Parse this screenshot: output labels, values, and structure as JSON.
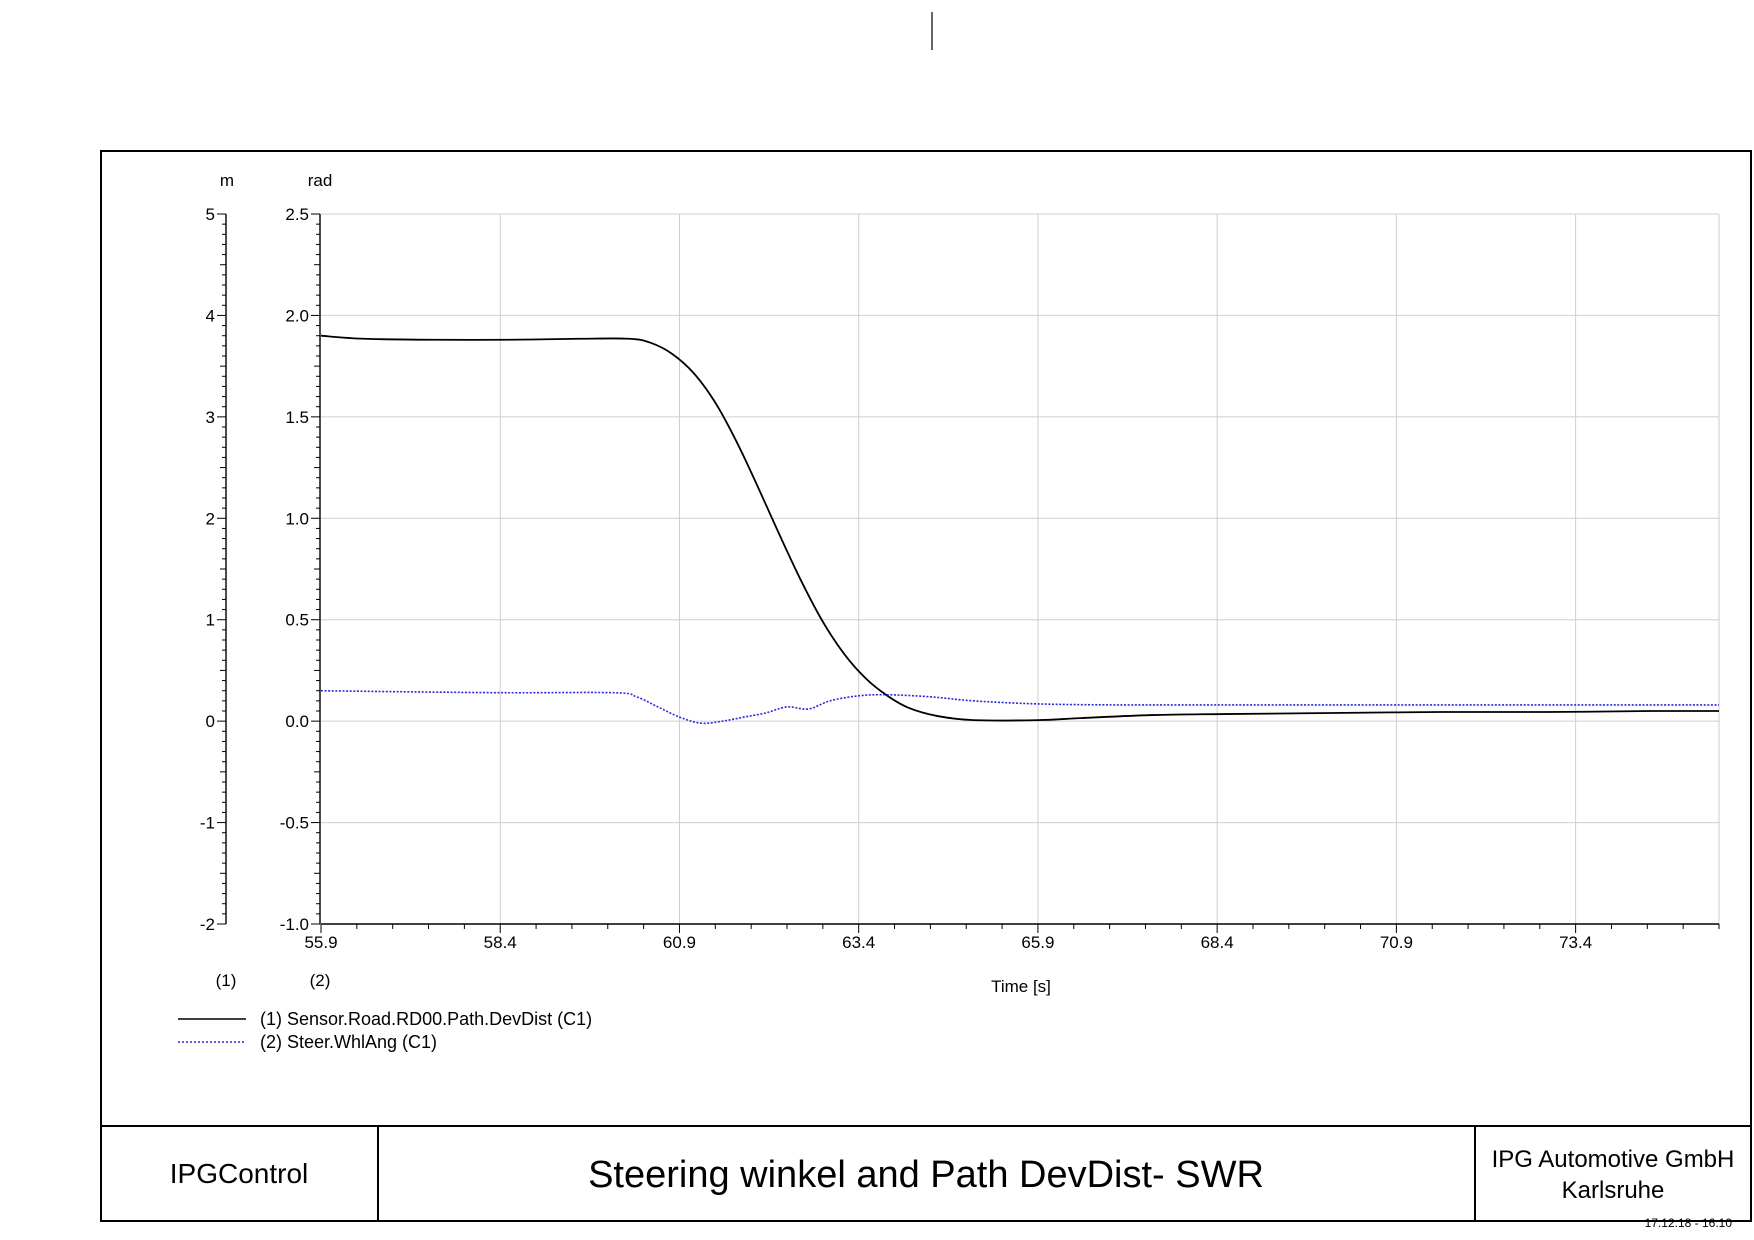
{
  "title_block": {
    "left": "IPGControl",
    "center": "Steering winkel and Path DevDist- SWR",
    "right_line1": "IPG Automotive GmbH",
    "right_line2": "Karlsruhe"
  },
  "timestamp": "17.12.18 - 16:10",
  "chart_data": {
    "type": "line",
    "xlabel": "Time [s]",
    "xlim": [
      55.9,
      75.4
    ],
    "x_ticks": [
      "55.9",
      "58.4",
      "60.9",
      "63.4",
      "65.9",
      "68.4",
      "70.9",
      "73.4"
    ],
    "y_axes": [
      {
        "id": "1",
        "unit": "m",
        "marker": "(1)",
        "ylim": [
          -2,
          5
        ],
        "ticks": [
          "-2",
          "-1",
          "0",
          "1",
          "2",
          "3",
          "4",
          "5"
        ]
      },
      {
        "id": "2",
        "unit": "rad",
        "marker": "(2)",
        "ylim": [
          -1.0,
          2.5
        ],
        "ticks": [
          "-1.0",
          "-0.5",
          "0.0",
          "0.5",
          "1.0",
          "1.5",
          "2.0",
          "2.5"
        ]
      }
    ],
    "grid": true,
    "legend_position": "bottom-left",
    "series": [
      {
        "name": "(1) Sensor.Road.RD00.Path.DevDist (C1)",
        "axis": "1",
        "color": "#000000",
        "style": "solid",
        "x": [
          55.9,
          56.5,
          57.5,
          58.5,
          59.5,
          60.2,
          60.5,
          60.8,
          61.1,
          61.4,
          61.7,
          62.0,
          62.3,
          62.6,
          62.9,
          63.2,
          63.5,
          63.8,
          64.1,
          64.5,
          65.0,
          65.9,
          66.5,
          67.5,
          68.5,
          70.0,
          71.5,
          73.0,
          74.5,
          75.4
        ],
        "y": [
          3.8,
          3.77,
          3.76,
          3.76,
          3.77,
          3.77,
          3.73,
          3.62,
          3.43,
          3.14,
          2.75,
          2.3,
          1.83,
          1.38,
          0.98,
          0.66,
          0.42,
          0.25,
          0.13,
          0.05,
          0.01,
          0.01,
          0.03,
          0.06,
          0.07,
          0.08,
          0.09,
          0.09,
          0.1,
          0.1
        ]
      },
      {
        "name": "(2) Steer.WhlAng (C1)",
        "axis": "2",
        "color": "#2a2adc",
        "style": "dotted",
        "x": [
          55.9,
          57.0,
          58.5,
          60.0,
          60.3,
          60.6,
          60.9,
          61.2,
          61.5,
          61.8,
          62.1,
          62.4,
          62.7,
          63.0,
          63.4,
          63.8,
          64.4,
          65.0,
          65.9,
          67.0,
          68.5,
          70.0,
          72.0,
          74.0,
          75.4
        ],
        "y": [
          0.15,
          0.145,
          0.14,
          0.14,
          0.12,
          0.07,
          0.02,
          -0.01,
          0.0,
          0.02,
          0.04,
          0.07,
          0.06,
          0.1,
          0.125,
          0.13,
          0.12,
          0.1,
          0.085,
          0.08,
          0.08,
          0.08,
          0.08,
          0.08,
          0.08
        ]
      }
    ]
  }
}
